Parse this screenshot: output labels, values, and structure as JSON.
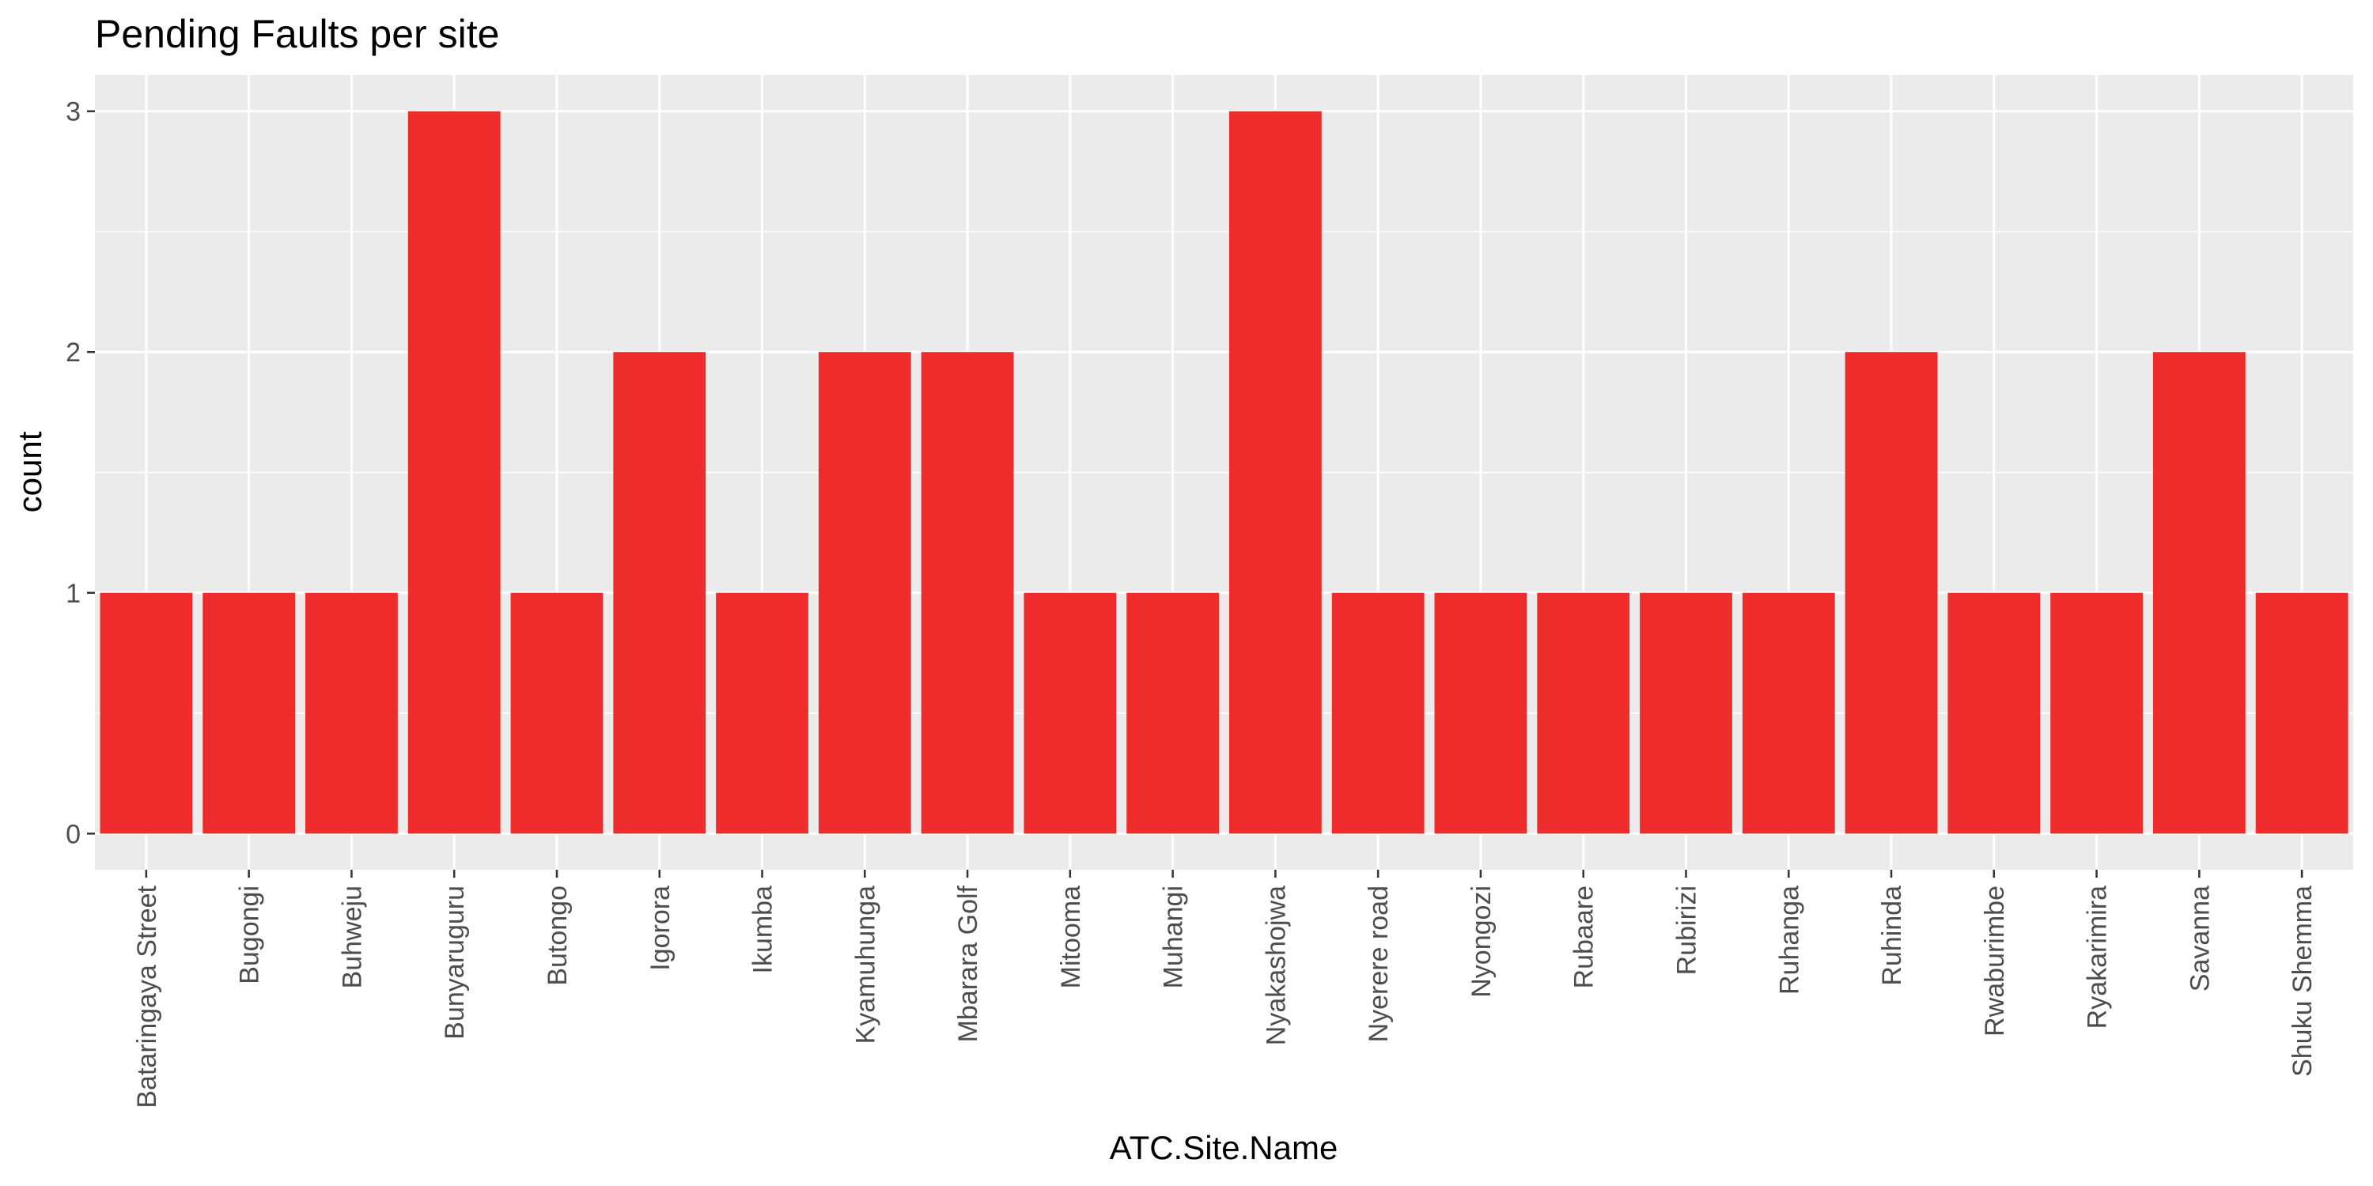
{
  "chart_data": {
    "type": "bar",
    "title": "Pending Faults per site",
    "xlabel": "ATC.Site.Name",
    "ylabel": "count",
    "categories": [
      "Bataringaya Street",
      "Bugongi",
      "Buhweju",
      "Bunyaruguru",
      "Butongo",
      "Igorora",
      "Ikumba",
      "Kyamuhunga",
      "Mbarara Golf",
      "Mitooma",
      "Muhangi",
      "Nyakashojwa",
      "Nyerere road",
      "Nyongozi",
      "Rubaare",
      "Rubirizi",
      "Ruhanga",
      "Ruhinda",
      "Rwaburimbe",
      "Ryakarimira",
      "Savanna",
      "Shuku Shemma"
    ],
    "values": [
      1,
      1,
      1,
      3,
      1,
      2,
      1,
      2,
      2,
      1,
      1,
      3,
      1,
      1,
      1,
      1,
      1,
      2,
      1,
      1,
      2,
      1
    ],
    "yticks": [
      "0",
      "1",
      "2",
      "3"
    ],
    "ylim": [
      -0.15,
      3.15
    ],
    "grid": true,
    "legend": "none",
    "colors": {
      "bar": "#EE2C2C",
      "panel": "#EBEBEB",
      "grid": "#FFFFFF",
      "tick_text": "#4D4D4D",
      "tick_mark": "#333333"
    }
  }
}
